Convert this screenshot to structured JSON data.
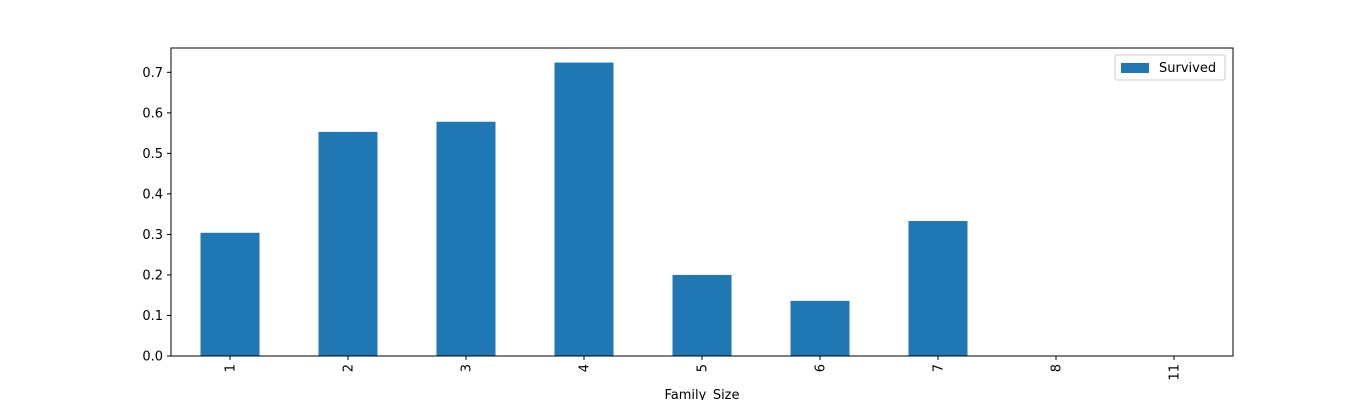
{
  "chart_data": {
    "type": "bar",
    "title": "",
    "xlabel": "Family_Size",
    "ylabel": "",
    "categories": [
      "1",
      "2",
      "3",
      "4",
      "5",
      "6",
      "7",
      "8",
      "11"
    ],
    "series": [
      {
        "name": "Survived",
        "color": "#1f77b4",
        "values": [
          0.304,
          0.553,
          0.578,
          0.724,
          0.2,
          0.136,
          0.333,
          0.0,
          0.0
        ]
      }
    ],
    "ylim": [
      0,
      0.76
    ],
    "yticks": [
      "0.0",
      "0.1",
      "0.2",
      "0.3",
      "0.4",
      "0.5",
      "0.6",
      "0.7"
    ],
    "legend_position": "top-right",
    "grid": false
  }
}
